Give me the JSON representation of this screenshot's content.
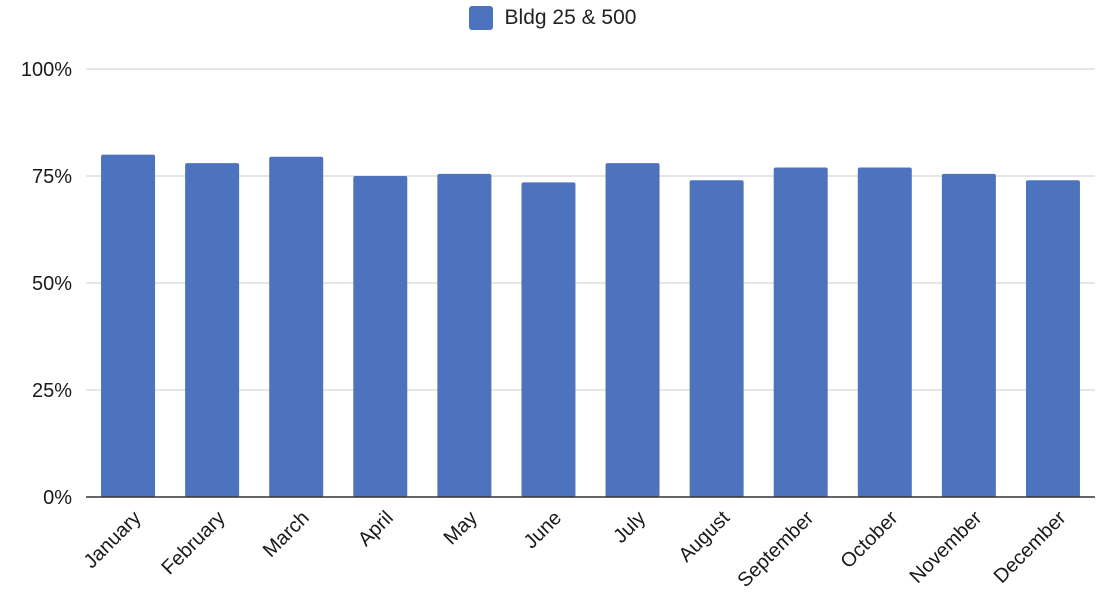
{
  "chart_data": {
    "type": "bar",
    "categories": [
      "January",
      "February",
      "March",
      "April",
      "May",
      "June",
      "July",
      "August",
      "September",
      "October",
      "November",
      "December"
    ],
    "series": [
      {
        "name": "Bldg 25 & 500",
        "values": [
          80,
          78,
          79.5,
          75,
          75.5,
          73.5,
          78,
          74,
          77,
          77,
          75.5,
          74
        ]
      }
    ],
    "yticks": [
      "0%",
      "25%",
      "50%",
      "75%",
      "100%"
    ],
    "ylim": [
      0,
      100
    ],
    "grid": true,
    "legend_position": "top-center",
    "colors": {
      "bar": "#4e73be",
      "grid": "#cccccc",
      "axis": "#333333"
    }
  }
}
